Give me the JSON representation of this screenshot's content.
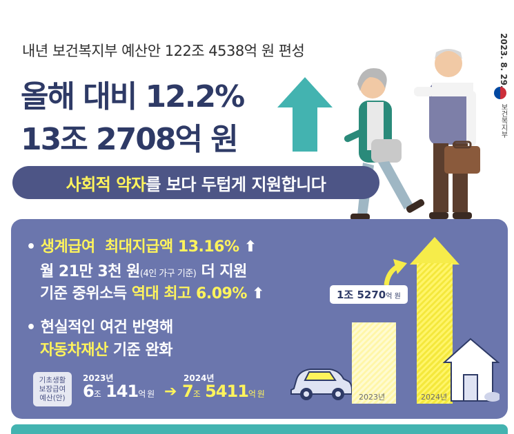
{
  "header": {
    "subtitle": "내년 보건복지부 예산안 122조 4538억 원 편성",
    "headline_line1": "올해 대비 12.2%",
    "headline_line2": "13조 2708억 원",
    "date": "2023. 8. 29.",
    "ministry": "보건복지부"
  },
  "banner": {
    "highlight": "사회적 약자",
    "rest": "를 보다 두텁게 지원합니다"
  },
  "bullets": {
    "marker": "•",
    "b1_title": "생계급여",
    "b1_rest": "최대지급액 13.16%",
    "b1_l2_main": "월 21만 3천 원",
    "b1_l2_small": "(4인 가구 기준)",
    "b1_l2_end": " 더 지원",
    "b1_l3_main": "기준 중위소득 ",
    "b1_l3_hl": "역대 최고 6.09%",
    "up_glyph": "⬆",
    "b2_l1": "현실적인 여건 반영해",
    "b2_l2_hl": "자동차재산",
    "b2_l2_rest": " 기준 완화"
  },
  "budget": {
    "badge": [
      "기초생활",
      "보장급여",
      "예산(안)"
    ],
    "year_2023": "2023년",
    "amount_2023_jo": "6",
    "amount_2023_eok": "141",
    "year_2024": "2024년",
    "amount_2024_jo": "7",
    "amount_2024_eok": "5411",
    "unit_jo": "조",
    "unit_eok": "억 원",
    "arrow": "➔"
  },
  "chart_data": {
    "type": "bar",
    "categories": [
      "2023년",
      "2024년"
    ],
    "values": [
      6.0141,
      7.5411
    ],
    "increase_label": "1조 5270",
    "increase_unit": "억 원"
  },
  "colors": {
    "navy": "#2e3a66",
    "panel": "#6b76ad",
    "banner": "#4d5586",
    "yellow": "#fff45c",
    "teal": "#43b3b0"
  }
}
